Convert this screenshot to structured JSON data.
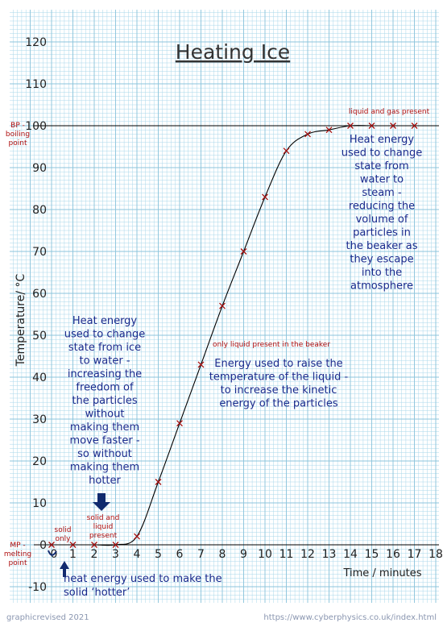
{
  "chart_data": {
    "type": "line",
    "title": "Heating Ice",
    "xlabel": "Time / minutes",
    "ylabel": "Temperature/ °C",
    "xlim": [
      0,
      18
    ],
    "ylim": [
      -10,
      120
    ],
    "x_ticks": [
      0,
      1,
      2,
      3,
      4,
      5,
      6,
      7,
      8,
      9,
      10,
      11,
      12,
      13,
      14,
      15,
      16,
      17,
      18
    ],
    "y_ticks": [
      -10,
      0,
      10,
      20,
      30,
      40,
      50,
      60,
      70,
      80,
      90,
      100,
      110,
      120
    ],
    "grid": true,
    "marker": "x",
    "series": [
      {
        "x": [
          0,
          1,
          2,
          3,
          4,
          5,
          6,
          7,
          8,
          9,
          10,
          11,
          12,
          13,
          14,
          15,
          16,
          17
        ],
        "y": [
          0,
          0,
          0,
          0,
          2,
          15,
          29,
          43,
          57,
          70,
          83,
          94,
          98,
          99,
          100,
          100,
          100,
          100
        ]
      }
    ],
    "reference_lines": [
      {
        "y": 100
      },
      {
        "y": 0
      }
    ],
    "axis_callouts": {
      "bp": [
        "BP -",
        "boiling",
        "point"
      ],
      "mp": [
        "MP -",
        "melting",
        "point"
      ]
    },
    "annotations": {
      "solid_only": [
        "solid",
        "only"
      ],
      "solid_liquid": [
        "solid and",
        "liquid",
        "present"
      ],
      "liquid_only": "only liquid present in the beaker",
      "liquid_gas": "liquid and gas present",
      "melting_text": [
        "Heat energy",
        "used to change",
        "state from ice",
        "to water -",
        "increasing the",
        "freedom of",
        "the particles",
        "without",
        "making them",
        "move faster -",
        "so without",
        "making them",
        "hotter"
      ],
      "heating_text": [
        "Energy used to raise the",
        "temperature of the liquid -",
        "to increase the kinetic",
        "energy of the particles"
      ],
      "boiling_text": [
        "Heat energy",
        "used to change",
        "state from",
        "water to",
        "steam -",
        "reducing the",
        "volume of",
        "particles in",
        "the beaker as",
        "they escape",
        "into the",
        "atmosphere"
      ],
      "solid_heat_text": [
        "heat energy used to make the",
        "solid ‘hotter’"
      ]
    },
    "colors": {
      "background": "#ffffff",
      "grid": "#a9d7ea",
      "curve": "#000000",
      "marker": "#a01010",
      "annotation": "#1a2a8c",
      "label_red": "#b01010",
      "arrow": "#102a6e"
    }
  },
  "footer": {
    "credit": "graphicrevised 2021",
    "url": "https://www.cyberphysics.co.uk/index.html"
  }
}
